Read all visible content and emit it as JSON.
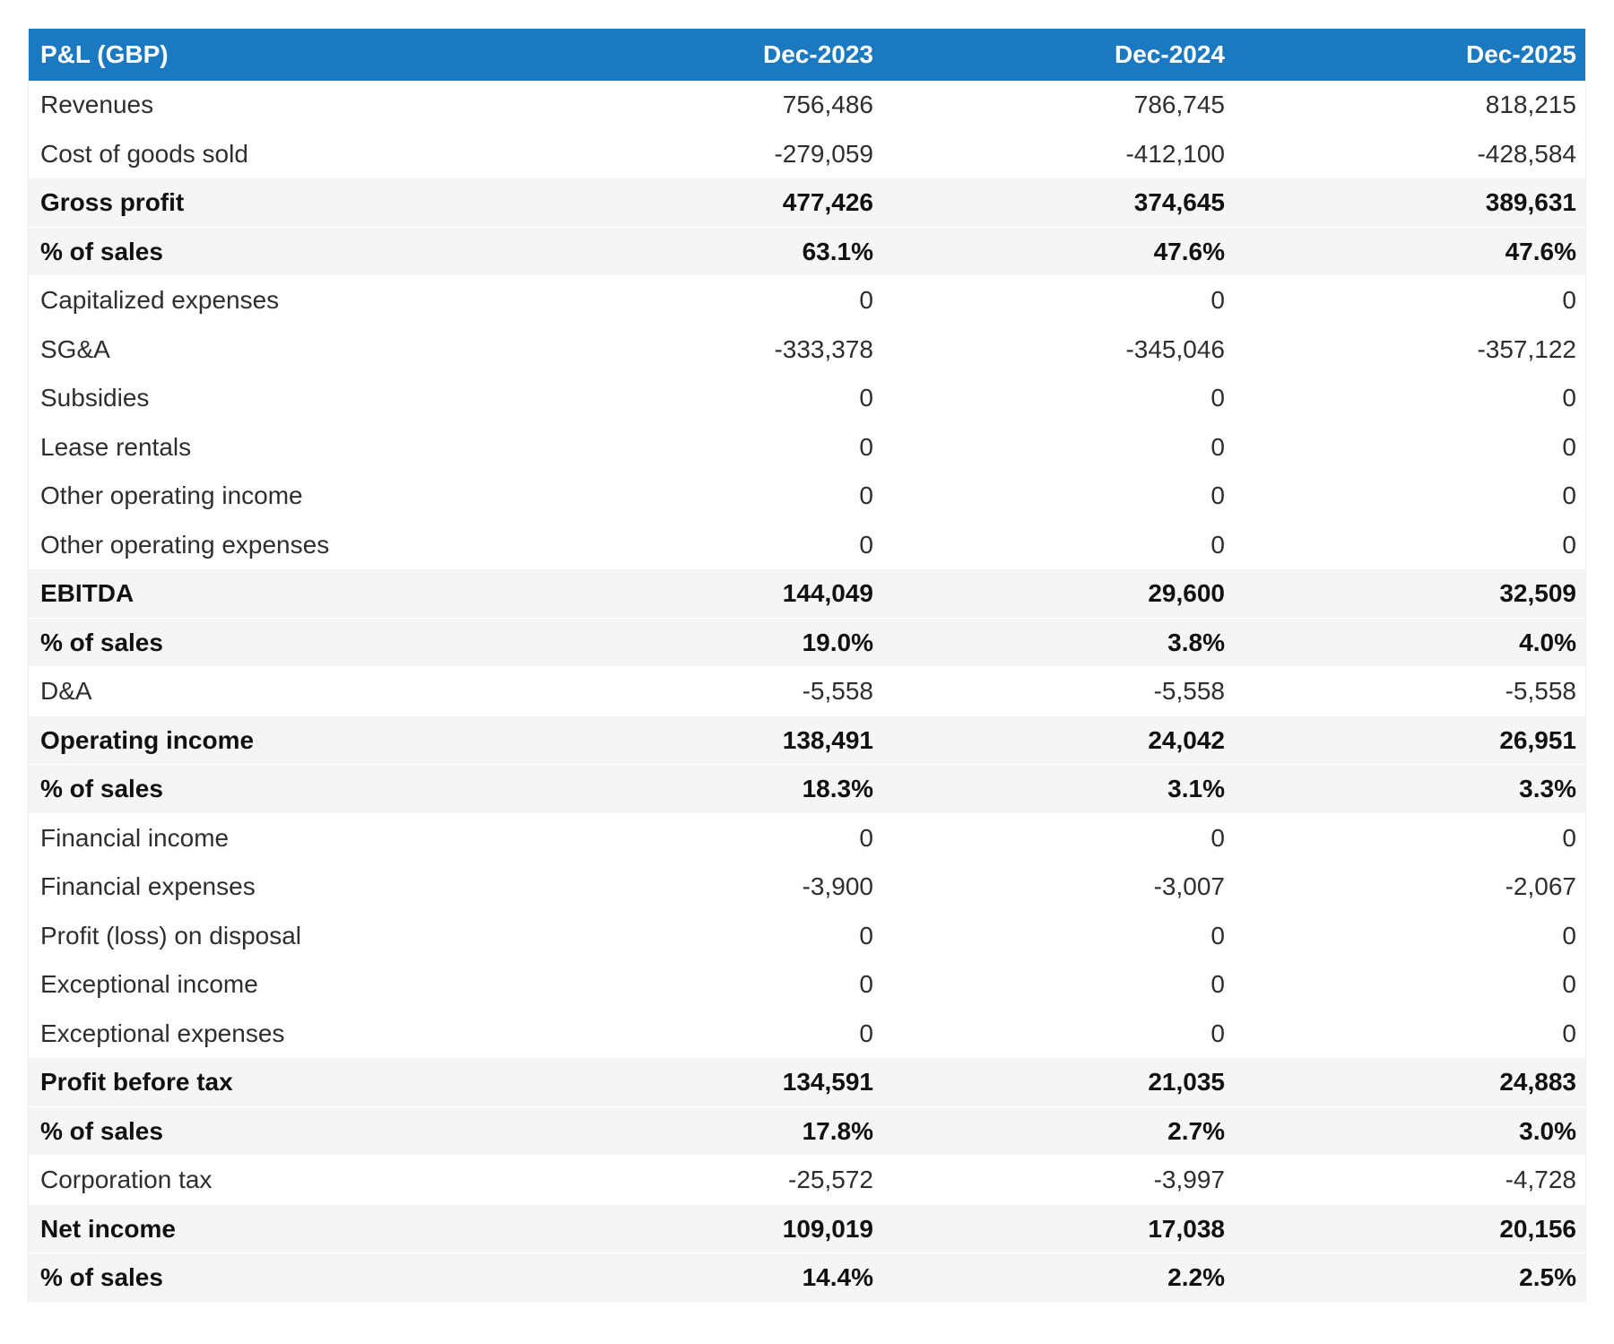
{
  "table": {
    "header": {
      "title": "P&L (GBP)",
      "columns": [
        "Dec-2023",
        "Dec-2024",
        "Dec-2025"
      ]
    },
    "rows": [
      {
        "label": "Revenues",
        "values": [
          "756,486",
          "786,745",
          "818,215"
        ],
        "emphasis": false
      },
      {
        "label": "Cost of goods sold",
        "values": [
          "-279,059",
          "-412,100",
          "-428,584"
        ],
        "emphasis": false
      },
      {
        "label": "Gross profit",
        "values": [
          "477,426",
          "374,645",
          "389,631"
        ],
        "emphasis": true
      },
      {
        "label": "% of sales",
        "values": [
          "63.1%",
          "47.6%",
          "47.6%"
        ],
        "emphasis": true
      },
      {
        "label": "Capitalized expenses",
        "values": [
          "0",
          "0",
          "0"
        ],
        "emphasis": false
      },
      {
        "label": "SG&A",
        "values": [
          "-333,378",
          "-345,046",
          "-357,122"
        ],
        "emphasis": false
      },
      {
        "label": "Subsidies",
        "values": [
          "0",
          "0",
          "0"
        ],
        "emphasis": false
      },
      {
        "label": "Lease rentals",
        "values": [
          "0",
          "0",
          "0"
        ],
        "emphasis": false
      },
      {
        "label": "Other operating income",
        "values": [
          "0",
          "0",
          "0"
        ],
        "emphasis": false
      },
      {
        "label": "Other operating expenses",
        "values": [
          "0",
          "0",
          "0"
        ],
        "emphasis": false
      },
      {
        "label": "EBITDA",
        "values": [
          "144,049",
          "29,600",
          "32,509"
        ],
        "emphasis": true
      },
      {
        "label": "% of sales",
        "values": [
          "19.0%",
          "3.8%",
          "4.0%"
        ],
        "emphasis": true
      },
      {
        "label": "D&A",
        "values": [
          "-5,558",
          "-5,558",
          "-5,558"
        ],
        "emphasis": false
      },
      {
        "label": "Operating income",
        "values": [
          "138,491",
          "24,042",
          "26,951"
        ],
        "emphasis": true
      },
      {
        "label": "% of sales",
        "values": [
          "18.3%",
          "3.1%",
          "3.3%"
        ],
        "emphasis": true
      },
      {
        "label": "Financial income",
        "values": [
          "0",
          "0",
          "0"
        ],
        "emphasis": false
      },
      {
        "label": "Financial expenses",
        "values": [
          "-3,900",
          "-3,007",
          "-2,067"
        ],
        "emphasis": false
      },
      {
        "label": "Profit (loss) on disposal",
        "values": [
          "0",
          "0",
          "0"
        ],
        "emphasis": false
      },
      {
        "label": "Exceptional income",
        "values": [
          "0",
          "0",
          "0"
        ],
        "emphasis": false
      },
      {
        "label": "Exceptional expenses",
        "values": [
          "0",
          "0",
          "0"
        ],
        "emphasis": false
      },
      {
        "label": "Profit before tax",
        "values": [
          "134,591",
          "21,035",
          "24,883"
        ],
        "emphasis": true
      },
      {
        "label": "% of sales",
        "values": [
          "17.8%",
          "2.7%",
          "3.0%"
        ],
        "emphasis": true
      },
      {
        "label": "Corporation tax",
        "values": [
          "-25,572",
          "-3,997",
          "-4,728"
        ],
        "emphasis": false
      },
      {
        "label": "Net income",
        "values": [
          "109,019",
          "17,038",
          "20,156"
        ],
        "emphasis": true
      },
      {
        "label": "% of sales",
        "values": [
          "14.4%",
          "2.2%",
          "2.5%"
        ],
        "emphasis": true
      }
    ]
  },
  "colors": {
    "header_bg": "#1b79c2",
    "header_text": "#ffffff",
    "emphasis_row_bg": "#f5f5f6",
    "row_bg": "#ffffff",
    "text": "#2e2e2e"
  }
}
